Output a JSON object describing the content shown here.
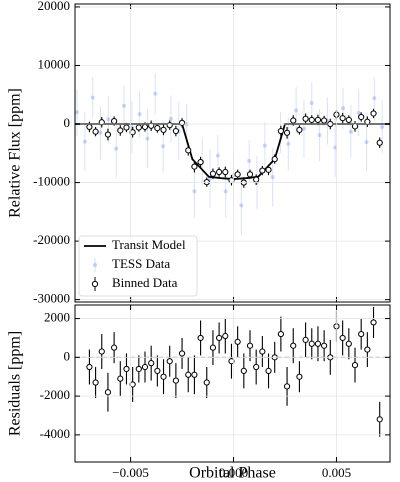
{
  "chart_data": [
    {
      "type": "errorbar",
      "ylabel": "Relative Flux [ppm]",
      "xlim": [
        -0.0077,
        0.0076
      ],
      "ylim": [
        -30400,
        20500
      ],
      "yticks": [
        -30000,
        -20000,
        -10000,
        0,
        10000,
        20000
      ],
      "grid": true,
      "legend": "lower left",
      "series": [
        {
          "name": "TESS Data",
          "kind": "errorbar",
          "color": "#6a8cde",
          "x": [
            -0.0076,
            -0.00722,
            -0.00684,
            -0.00646,
            -0.00608,
            -0.0057,
            -0.00532,
            -0.00494,
            -0.00456,
            -0.00418,
            -0.0038,
            -0.00342,
            -0.00304,
            -0.00266,
            -0.00228,
            -0.0019,
            -0.00152,
            -0.00114,
            -0.00076,
            -0.00038,
            0,
            0.00038,
            0.00076,
            0.00114,
            0.00152,
            0.0019,
            0.00228,
            0.00266,
            0.00304,
            0.00342,
            0.0038,
            0.00418,
            0.00456,
            0.00494,
            0.00532,
            0.0057,
            0.00608,
            0.00646,
            0.00684,
            0.00722
          ],
          "values": [
            2000,
            -3000,
            4500,
            -1500,
            800,
            -4200,
            3100,
            -600,
            1700,
            -2500,
            5200,
            -3800,
            900,
            -1200,
            -40,
            -11475,
            -6400,
            -9300,
            -5400,
            -11500,
            -8800,
            -13900,
            -6300,
            -10000,
            -3700,
            -9075,
            -1440,
            -3400,
            2300,
            -800,
            3600,
            -1900,
            500,
            -4000,
            2700,
            -1300,
            1900,
            -3100,
            4400,
            -500
          ],
          "errors": [
            4000,
            5000,
            3500,
            4500,
            4000,
            5000,
            3500,
            4500,
            4000,
            5000,
            3500,
            4500,
            4000,
            5000,
            3500,
            4500,
            4000,
            5000,
            3500,
            4500,
            4000,
            5000,
            3500,
            4500,
            4000,
            5000,
            3500,
            4500,
            4000,
            5000,
            3500,
            4500,
            4000,
            5000,
            3500,
            4500,
            4000,
            5000,
            3500,
            4500
          ]
        },
        {
          "name": "Transit Model",
          "kind": "line",
          "color": "#000000",
          "x": [
            -0.0077,
            -0.0025,
            -0.0022,
            -0.002,
            -0.0016,
            -0.0012,
            -0.0006,
            0,
            0.0006,
            0.0012,
            0.0016,
            0.002,
            0.0022,
            0.0025,
            0.0076
          ],
          "values": [
            0,
            0,
            -3600,
            -6000,
            -7500,
            -9000,
            -9250,
            -9400,
            -9250,
            -9000,
            -7500,
            -6000,
            -3600,
            0,
            0
          ]
        },
        {
          "name": "Binned Data",
          "kind": "errorbar",
          "color": "#000000",
          "x": [
            -0.007,
            -0.0067,
            -0.0064,
            -0.0061,
            -0.0058,
            -0.0055,
            -0.0052,
            -0.0049,
            -0.0046,
            -0.0043,
            -0.004,
            -0.0037,
            -0.0034,
            -0.0031,
            -0.0028,
            -0.0025,
            -0.0022,
            -0.0019,
            -0.0016,
            -0.0013,
            -0.001,
            -0.0007,
            -0.0004,
            -0.0001,
            0.0002,
            0.0005,
            0.0008,
            0.0011,
            0.0014,
            0.0017,
            0.002,
            0.0023,
            0.0026,
            0.0029,
            0.0032,
            0.0035,
            0.0038,
            0.0041,
            0.0044,
            0.0047,
            0.005,
            0.0053,
            0.0056,
            0.0059,
            0.0062,
            0.0065,
            0.0068,
            0.0071
          ],
          "values": [
            -500,
            -1300,
            300,
            -1800,
            500,
            -1100,
            -600,
            -1400,
            -600,
            -500,
            -300,
            -700,
            -1000,
            -200,
            -1200,
            200,
            -4500,
            -7275,
            -6500,
            -9925,
            -8500,
            -8200,
            -8200,
            -9600,
            -8600,
            -10000,
            -8600,
            -9500,
            -7950,
            -7825,
            -6000,
            -1200,
            -1500,
            600,
            -1000,
            900,
            700,
            700,
            600,
            0,
            1600,
            1000,
            700,
            -400,
            1200,
            400,
            1800,
            -3200
          ],
          "errors": [
            900,
            800,
            900,
            1000,
            800,
            900,
            800,
            900,
            700,
            800,
            900,
            800,
            900,
            800,
            900,
            800,
            900,
            1000,
            900,
            800,
            900,
            800,
            900,
            900,
            800,
            900,
            800,
            900,
            800,
            900,
            800,
            900,
            1000,
            900,
            800,
            900,
            800,
            900,
            800,
            900,
            800,
            900,
            800,
            900,
            800,
            900,
            800,
            900
          ]
        }
      ]
    },
    {
      "type": "errorbar",
      "ylabel": "Residuals [ppm]",
      "xlabel": "Orbital Phase",
      "xlim": [
        -0.0077,
        0.0076
      ],
      "ylim": [
        -5400,
        2700
      ],
      "xticks": [
        {
          "value": -0.005,
          "label": "−0.005"
        },
        {
          "value": 0,
          "label": "0.000"
        },
        {
          "value": 0.005,
          "label": "0.005"
        }
      ],
      "yticks": [
        -4000,
        -2000,
        0,
        2000
      ],
      "grid": true,
      "reference_line": 0,
      "series": [
        {
          "name": "Residuals",
          "kind": "errorbar",
          "color": "#000000",
          "x": [
            -0.007,
            -0.0067,
            -0.0064,
            -0.0061,
            -0.0058,
            -0.0055,
            -0.0052,
            -0.0049,
            -0.0046,
            -0.0043,
            -0.004,
            -0.0037,
            -0.0034,
            -0.0031,
            -0.0028,
            -0.0025,
            -0.0022,
            -0.0019,
            -0.0016,
            -0.0013,
            -0.001,
            -0.0007,
            -0.0004,
            -0.0001,
            0.0002,
            0.0005,
            0.0008,
            0.0011,
            0.0014,
            0.0017,
            0.002,
            0.0023,
            0.0026,
            0.0029,
            0.0032,
            0.0035,
            0.0038,
            0.0041,
            0.0044,
            0.0047,
            0.005,
            0.0053,
            0.0056,
            0.0059,
            0.0062,
            0.0065,
            0.0068,
            0.0071
          ],
          "values": [
            -500,
            -1300,
            300,
            -1800,
            500,
            -1100,
            -600,
            -1400,
            -600,
            -500,
            -300,
            -700,
            -1000,
            -200,
            -1200,
            200,
            -900,
            -900,
            1000,
            -1300,
            500,
            1000,
            1100,
            -200,
            800,
            -700,
            600,
            -500,
            300,
            -700,
            0,
            1200,
            -1500,
            600,
            -1000,
            900,
            700,
            700,
            600,
            0,
            1600,
            1000,
            700,
            -400,
            1200,
            400,
            1800,
            -3200
          ],
          "errors": [
            900,
            800,
            900,
            1000,
            800,
            900,
            800,
            900,
            700,
            800,
            900,
            800,
            900,
            800,
            900,
            800,
            900,
            1000,
            900,
            800,
            900,
            800,
            900,
            900,
            800,
            900,
            800,
            900,
            800,
            900,
            800,
            900,
            1000,
            900,
            800,
            900,
            800,
            900,
            800,
            900,
            800,
            900,
            800,
            900,
            800,
            900,
            800,
            900
          ]
        }
      ]
    }
  ]
}
